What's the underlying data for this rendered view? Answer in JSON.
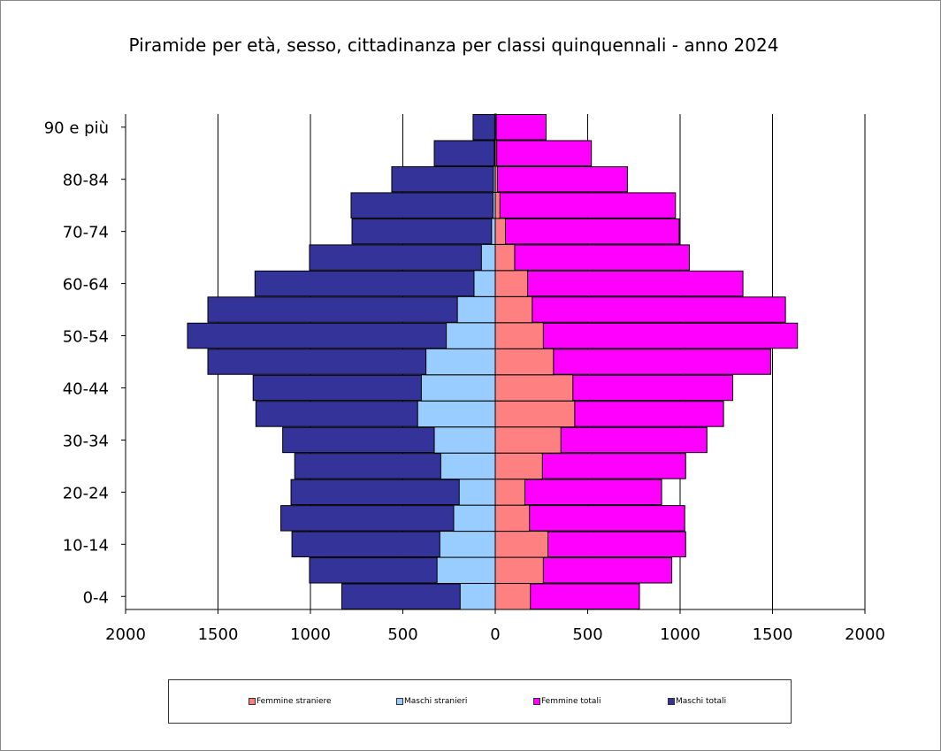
{
  "chart_data": {
    "type": "bar",
    "title": "Piramide per età, sesso, cittadinanza per classi quinquennali - anno 2024",
    "orientation": "horizontal-pyramid",
    "categories": [
      "0-4",
      "5-9",
      "10-14",
      "15-19",
      "20-24",
      "25-29",
      "30-34",
      "35-39",
      "40-44",
      "45-49",
      "50-54",
      "55-59",
      "60-64",
      "65-69",
      "70-74",
      "75-79",
      "80-84",
      "85-89",
      "90 e più"
    ],
    "category_tick_labels": [
      "0-4",
      "10-14",
      "20-24",
      "30-34",
      "40-44",
      "50-54",
      "60-64",
      "70-74",
      "80-84",
      "90 e più"
    ],
    "x_tick_labels": [
      "2000",
      "1500",
      "1000",
      "500",
      "0",
      "500",
      "1000",
      "1500",
      "2000"
    ],
    "xlim": [
      -2000,
      2000
    ],
    "grid": true,
    "legend_position": "bottom",
    "series": [
      {
        "name": "Femmine straniere",
        "side": "right",
        "color": "#ff8080",
        "values": [
          190,
          260,
          285,
          185,
          160,
          255,
          355,
          430,
          420,
          315,
          260,
          200,
          175,
          105,
          55,
          25,
          12,
          8,
          5
        ]
      },
      {
        "name": "Maschi stranieri",
        "side": "left",
        "color": "#99ccff",
        "values": [
          190,
          315,
          300,
          225,
          195,
          295,
          330,
          420,
          400,
          375,
          265,
          205,
          115,
          75,
          20,
          12,
          10,
          5,
          3
        ]
      },
      {
        "name": "Femmine totali",
        "side": "right",
        "color": "#ff00ff",
        "values": [
          780,
          955,
          1030,
          1025,
          900,
          1030,
          1145,
          1235,
          1285,
          1490,
          1635,
          1570,
          1340,
          1050,
          995,
          975,
          715,
          520,
          275
        ]
      },
      {
        "name": "Maschi totali",
        "side": "left",
        "color": "#333399",
        "values": [
          830,
          1005,
          1100,
          1160,
          1105,
          1085,
          1150,
          1295,
          1310,
          1555,
          1665,
          1555,
          1300,
          1005,
          775,
          780,
          560,
          330,
          120
        ]
      }
    ]
  }
}
